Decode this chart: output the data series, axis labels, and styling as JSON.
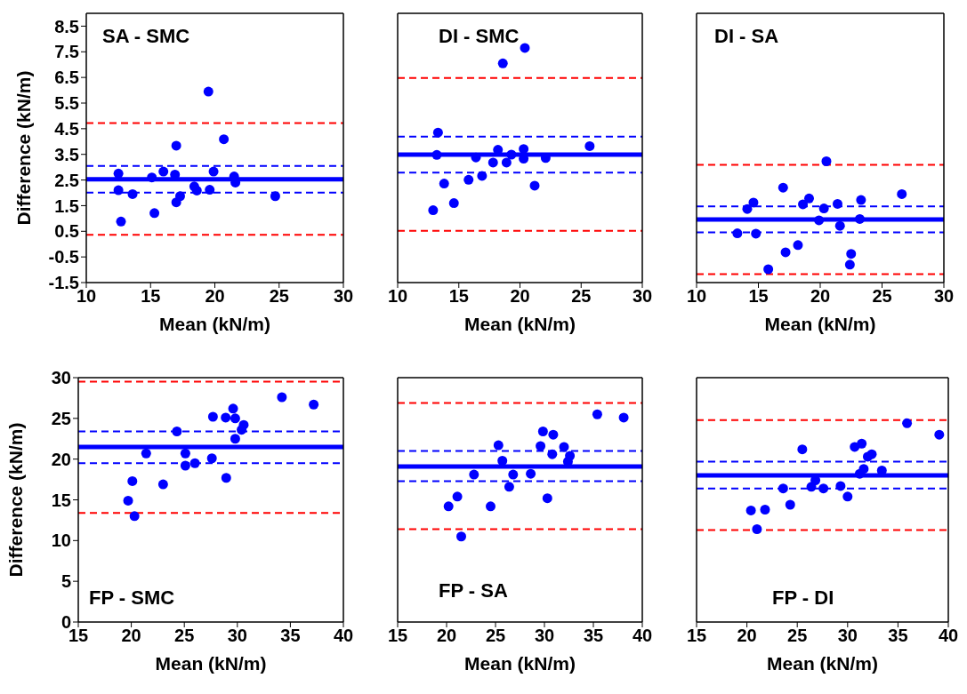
{
  "chart_data": [
    {
      "type": "scatter",
      "annotations": [
        "SA - SMC"
      ],
      "xlabel": "Mean (kN/m)",
      "ylabel": "Difference (kN/m)",
      "marker": "circle",
      "x": [
        12.5,
        12.5,
        12.7,
        13.6,
        15.1,
        15.3,
        16.0,
        16.9,
        17.0,
        17.0,
        17.3,
        18.4,
        18.6,
        19.5,
        19.6,
        19.9,
        20.7,
        21.5,
        21.6,
        24.7
      ],
      "series": [
        {
          "color": "#0000ff",
          "values": [
            2.75,
            2.1,
            0.88,
            1.95,
            2.6,
            1.21,
            2.83,
            2.71,
            3.84,
            1.63,
            1.87,
            2.25,
            2.09,
            5.95,
            2.12,
            2.83,
            4.09,
            2.64,
            2.4,
            1.87
          ]
        }
      ],
      "xlim": [
        10,
        30
      ],
      "xticks": [
        10,
        15,
        20,
        25,
        30
      ],
      "ylim": [
        -1.5,
        9
      ],
      "yticks": [
        -1.5,
        -0.5,
        0.5,
        1.5,
        2.5,
        3.5,
        4.5,
        5.5,
        6.5,
        7.5,
        8.5
      ],
      "ref_lines": [
        {
          "axis": "y",
          "value": 4.72,
          "color": "#ff0000",
          "line_style": "dashed"
        },
        {
          "axis": "y",
          "value": 0.36,
          "color": "#ff0000",
          "line_style": "dashed"
        },
        {
          "axis": "y",
          "value": 3.05,
          "color": "#0000ff",
          "line_style": "dashed"
        },
        {
          "axis": "y",
          "value": 2.01,
          "color": "#0000ff",
          "line_style": "dashed"
        },
        {
          "axis": "y",
          "value": 2.53,
          "color": "#0000ff",
          "line_style": "solid"
        }
      ]
    },
    {
      "type": "scatter",
      "annotations": [
        "DI - SMC"
      ],
      "xlabel": "Mean (kN/m)",
      "tick_labels": "x",
      "marker": "circle",
      "x": [
        12.9,
        13.2,
        13.3,
        13.8,
        14.6,
        15.8,
        16.4,
        16.9,
        17.8,
        18.2,
        18.6,
        18.9,
        19.3,
        20.3,
        20.3,
        20.4,
        21.2,
        22.1,
        25.7
      ],
      "series": [
        {
          "color": "#0000ff",
          "values": [
            1.32,
            3.48,
            4.35,
            2.36,
            1.6,
            2.51,
            3.38,
            2.66,
            3.18,
            3.68,
            7.05,
            3.18,
            3.49,
            3.71,
            3.33,
            7.65,
            2.28,
            3.36,
            3.82
          ]
        }
      ],
      "xlim": [
        10,
        30
      ],
      "xticks": [
        10,
        15,
        20,
        25,
        30
      ],
      "ylim": [
        -1.5,
        9
      ],
      "ref_lines": [
        {
          "axis": "y",
          "value": 6.48,
          "color": "#ff0000",
          "line_style": "dashed"
        },
        {
          "axis": "y",
          "value": 0.52,
          "color": "#ff0000",
          "line_style": "dashed"
        },
        {
          "axis": "y",
          "value": 4.19,
          "color": "#0000ff",
          "line_style": "dashed"
        },
        {
          "axis": "y",
          "value": 2.79,
          "color": "#0000ff",
          "line_style": "dashed"
        },
        {
          "axis": "y",
          "value": 3.49,
          "color": "#0000ff",
          "line_style": "solid"
        }
      ]
    },
    {
      "type": "scatter",
      "annotations": [
        "DI - SA"
      ],
      "xlabel": "Mean (kN/m)",
      "tick_labels": "x",
      "marker": "circle",
      "x": [
        13.3,
        14.1,
        14.6,
        14.8,
        15.8,
        17.0,
        17.2,
        18.2,
        18.6,
        19.1,
        19.9,
        20.3,
        20.5,
        21.4,
        21.6,
        22.4,
        22.5,
        23.3,
        23.2,
        26.6
      ],
      "series": [
        {
          "color": "#0000ff",
          "values": [
            0.42,
            1.37,
            1.62,
            0.41,
            -0.98,
            2.2,
            -0.32,
            -0.04,
            1.55,
            1.78,
            0.93,
            1.39,
            3.23,
            1.57,
            0.71,
            -0.8,
            -0.38,
            1.72,
            0.98,
            1.95
          ]
        }
      ],
      "xlim": [
        10,
        30
      ],
      "xticks": [
        10,
        15,
        20,
        25,
        30
      ],
      "ylim": [
        -1.5,
        9
      ],
      "ref_lines": [
        {
          "axis": "y",
          "value": 3.09,
          "color": "#ff0000",
          "line_style": "dashed"
        },
        {
          "axis": "y",
          "value": -1.17,
          "color": "#ff0000",
          "line_style": "dashed"
        },
        {
          "axis": "y",
          "value": 1.47,
          "color": "#0000ff",
          "line_style": "dashed"
        },
        {
          "axis": "y",
          "value": 0.46,
          "color": "#0000ff",
          "line_style": "dashed"
        },
        {
          "axis": "y",
          "value": 0.96,
          "color": "#0000ff",
          "line_style": "solid"
        }
      ]
    },
    {
      "type": "scatter",
      "annotations": [
        "FP - SMC"
      ],
      "xlabel": "Mean (kN/m)",
      "ylabel": "Difference (kN/m)",
      "marker": "circle",
      "x": [
        19.7,
        20.1,
        20.3,
        21.4,
        23.0,
        24.3,
        25.1,
        25.1,
        26.0,
        27.6,
        27.7,
        28.9,
        28.95,
        29.6,
        29.8,
        29.8,
        30.4,
        30.6,
        34.2,
        37.2
      ],
      "series": [
        {
          "color": "#0000ff",
          "values": [
            14.9,
            17.3,
            13.0,
            20.7,
            16.9,
            23.4,
            20.7,
            19.2,
            19.5,
            20.1,
            25.2,
            25.1,
            17.7,
            26.2,
            22.5,
            25.0,
            23.6,
            24.2,
            27.6,
            26.7
          ]
        }
      ],
      "xlim": [
        15,
        40
      ],
      "xticks": [
        15,
        20,
        25,
        30,
        35,
        40
      ],
      "ylim": [
        0,
        30
      ],
      "yticks": [
        0,
        5,
        10,
        15,
        20,
        25,
        30
      ],
      "ref_lines": [
        {
          "axis": "y",
          "value": 29.5,
          "color": "#ff0000",
          "line_style": "dashed"
        },
        {
          "axis": "y",
          "value": 13.4,
          "color": "#ff0000",
          "line_style": "dashed"
        },
        {
          "axis": "y",
          "value": 23.4,
          "color": "#0000ff",
          "line_style": "dashed"
        },
        {
          "axis": "y",
          "value": 19.5,
          "color": "#0000ff",
          "line_style": "dashed"
        },
        {
          "axis": "y",
          "value": 21.5,
          "color": "#0000ff",
          "line_style": "solid"
        }
      ]
    },
    {
      "type": "scatter",
      "annotations": [
        "FP - SA"
      ],
      "xlabel": "Mean (kN/m)",
      "tick_labels": "x",
      "marker": "circle",
      "x": [
        20.2,
        21.1,
        21.5,
        22.8,
        24.5,
        25.3,
        25.7,
        26.4,
        26.8,
        28.6,
        29.6,
        29.85,
        30.3,
        30.8,
        30.9,
        32.0,
        32.4,
        32.6,
        35.4,
        38.1
      ],
      "series": [
        {
          "color": "#0000ff",
          "values": [
            14.2,
            15.4,
            10.5,
            18.1,
            14.2,
            21.7,
            19.8,
            16.6,
            18.1,
            18.2,
            21.6,
            23.4,
            15.2,
            20.6,
            23.0,
            21.5,
            19.7,
            20.4,
            25.5,
            25.1
          ]
        }
      ],
      "xlim": [
        15,
        40
      ],
      "xticks": [
        15,
        20,
        25,
        30,
        35,
        40
      ],
      "ylim": [
        0,
        30
      ],
      "ref_lines": [
        {
          "axis": "y",
          "value": 26.9,
          "color": "#ff0000",
          "line_style": "dashed"
        },
        {
          "axis": "y",
          "value": 11.4,
          "color": "#ff0000",
          "line_style": "dashed"
        },
        {
          "axis": "y",
          "value": 21.0,
          "color": "#0000ff",
          "line_style": "dashed"
        },
        {
          "axis": "y",
          "value": 17.3,
          "color": "#0000ff",
          "line_style": "dashed"
        },
        {
          "axis": "y",
          "value": 19.1,
          "color": "#0000ff",
          "line_style": "solid"
        }
      ]
    },
    {
      "type": "scatter",
      "annotations": [
        "FP - DI"
      ],
      "xlabel": "Mean (kN/m)",
      "tick_labels": "x",
      "marker": "circle",
      "x": [
        20.4,
        21.0,
        21.8,
        23.6,
        24.3,
        25.5,
        26.4,
        26.8,
        27.6,
        29.3,
        30.0,
        30.7,
        31.4,
        31.2,
        31.6,
        32.0,
        32.4,
        33.4,
        35.9,
        39.1
      ],
      "series": [
        {
          "color": "#0000ff",
          "values": [
            13.7,
            11.4,
            13.8,
            16.4,
            14.4,
            21.2,
            16.6,
            17.4,
            16.4,
            16.7,
            15.4,
            21.5,
            21.9,
            18.2,
            18.8,
            20.3,
            20.6,
            18.6,
            24.4,
            23.0
          ]
        }
      ],
      "xlim": [
        15,
        40
      ],
      "xticks": [
        15,
        20,
        25,
        30,
        35,
        40
      ],
      "ylim": [
        0,
        30
      ],
      "ref_lines": [
        {
          "axis": "y",
          "value": 24.8,
          "color": "#ff0000",
          "line_style": "dashed"
        },
        {
          "axis": "y",
          "value": 11.3,
          "color": "#ff0000",
          "line_style": "dashed"
        },
        {
          "axis": "y",
          "value": 19.7,
          "color": "#0000ff",
          "line_style": "dashed"
        },
        {
          "axis": "y",
          "value": 16.4,
          "color": "#0000ff",
          "line_style": "dashed"
        },
        {
          "axis": "y",
          "value": 18.0,
          "color": "#0000ff",
          "line_style": "solid"
        }
      ]
    }
  ]
}
